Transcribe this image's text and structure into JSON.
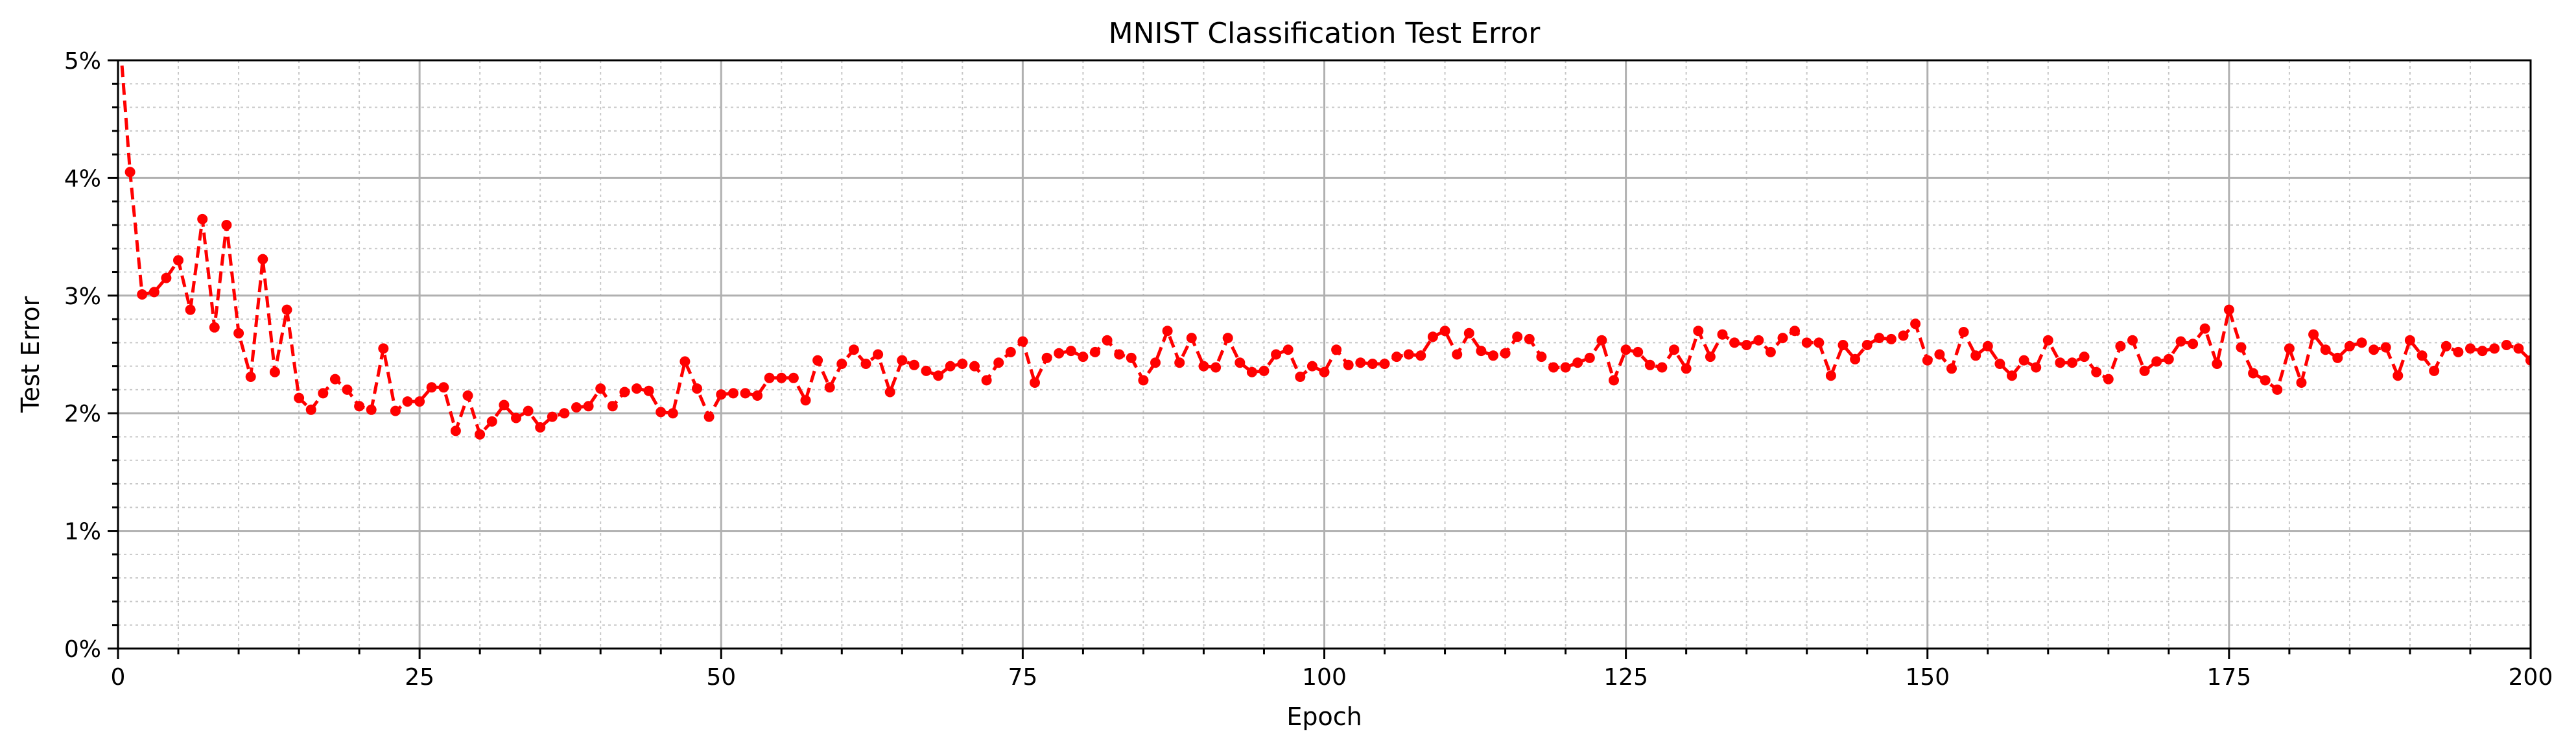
{
  "chart_data": {
    "type": "line",
    "title": "MNIST Classification Test Error",
    "xlabel": "Epoch",
    "ylabel": "Test Error",
    "xlim": [
      0,
      200
    ],
    "ylim": [
      0,
      5
    ],
    "x_ticks": [
      0,
      25,
      50,
      75,
      100,
      125,
      150,
      175,
      200
    ],
    "x_tick_labels": [
      "0",
      "25",
      "50",
      "75",
      "100",
      "125",
      "150",
      "175",
      "200"
    ],
    "y_ticks": [
      0,
      1,
      2,
      3,
      4,
      5
    ],
    "y_tick_labels": [
      "0%",
      "1%",
      "2%",
      "3%",
      "4%",
      "5%"
    ],
    "x_minor_step": 5,
    "y_minor_step": 0.2,
    "grid": true,
    "legend": false,
    "series": [
      {
        "color": "#ff0000",
        "line_style": "dashed",
        "marker": "circle",
        "x_start": 0,
        "x_step": 1,
        "values": [
          5.4,
          4.05,
          3.01,
          3.03,
          3.15,
          3.3,
          2.88,
          3.65,
          2.73,
          3.6,
          2.68,
          2.31,
          3.31,
          2.35,
          2.88,
          2.13,
          2.03,
          2.17,
          2.29,
          2.2,
          2.06,
          2.03,
          2.55,
          2.02,
          2.1,
          2.1,
          2.22,
          2.22,
          1.85,
          2.15,
          1.82,
          1.93,
          2.07,
          1.96,
          2.02,
          1.88,
          1.97,
          2.0,
          2.05,
          2.06,
          2.21,
          2.06,
          2.18,
          2.21,
          2.19,
          2.01,
          2.0,
          2.44,
          2.21,
          1.97,
          2.16,
          2.17,
          2.17,
          2.15,
          2.3,
          2.3,
          2.3,
          2.11,
          2.45,
          2.22,
          2.42,
          2.54,
          2.42,
          2.5,
          2.18,
          2.45,
          2.41,
          2.36,
          2.32,
          2.4,
          2.42,
          2.4,
          2.28,
          2.43,
          2.52,
          2.61,
          2.26,
          2.47,
          2.51,
          2.53,
          2.48,
          2.52,
          2.62,
          2.5,
          2.47,
          2.28,
          2.43,
          2.7,
          2.43,
          2.64,
          2.4,
          2.39,
          2.64,
          2.43,
          2.35,
          2.36,
          2.5,
          2.54,
          2.31,
          2.4,
          2.35,
          2.54,
          2.41,
          2.43,
          2.42,
          2.42,
          2.48,
          2.5,
          2.49,
          2.65,
          2.7,
          2.5,
          2.68,
          2.53,
          2.49,
          2.51,
          2.65,
          2.63,
          2.48,
          2.39,
          2.39,
          2.43,
          2.47,
          2.62,
          2.28,
          2.54,
          2.52,
          2.41,
          2.39,
          2.54,
          2.38,
          2.7,
          2.48,
          2.67,
          2.6,
          2.58,
          2.62,
          2.52,
          2.64,
          2.7,
          2.6,
          2.6,
          2.32,
          2.58,
          2.46,
          2.58,
          2.64,
          2.63,
          2.66,
          2.76,
          2.45,
          2.5,
          2.38,
          2.69,
          2.49,
          2.57,
          2.42,
          2.32,
          2.45,
          2.39,
          2.62,
          2.43,
          2.43,
          2.48,
          2.35,
          2.29,
          2.57,
          2.62,
          2.36,
          2.44,
          2.46,
          2.61,
          2.59,
          2.72,
          2.42,
          2.88,
          2.56,
          2.34,
          2.28,
          2.2,
          2.55,
          2.26,
          2.67,
          2.54,
          2.47,
          2.57,
          2.6,
          2.54,
          2.56,
          2.32,
          2.62,
          2.49,
          2.36,
          2.57,
          2.52,
          2.55,
          2.53,
          2.55,
          2.58,
          2.55,
          2.45
        ]
      }
    ]
  }
}
